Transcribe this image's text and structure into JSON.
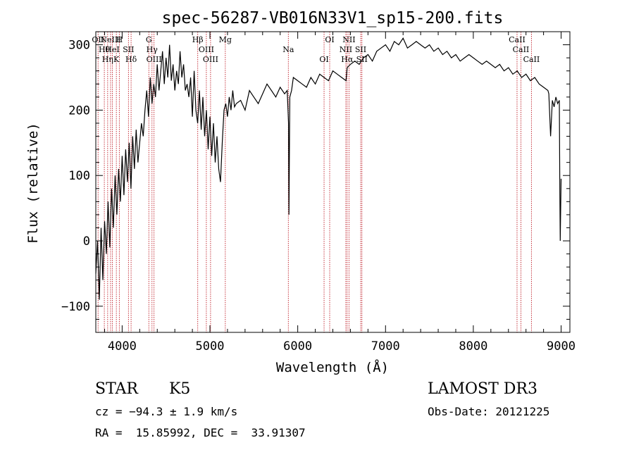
{
  "chart_data": {
    "type": "line",
    "title": "spec-56287-VB016N33V1_sp15-200.fits",
    "xlabel": "Wavelength (Å)",
    "ylabel": "Flux (relative)",
    "xlim": [
      3700,
      9100
    ],
    "ylim": [
      -140,
      320
    ],
    "x_ticks": [
      4000,
      5000,
      6000,
      7000,
      8000,
      9000
    ],
    "y_ticks": [
      -100,
      0,
      100,
      200,
      300
    ],
    "series": [
      {
        "name": "flux",
        "x": [
          3700,
          3720,
          3740,
          3760,
          3780,
          3800,
          3820,
          3840,
          3860,
          3880,
          3900,
          3920,
          3940,
          3960,
          3980,
          4000,
          4020,
          4040,
          4060,
          4080,
          4100,
          4120,
          4140,
          4160,
          4180,
          4200,
          4220,
          4240,
          4260,
          4280,
          4300,
          4320,
          4340,
          4360,
          4380,
          4400,
          4420,
          4440,
          4460,
          4480,
          4500,
          4520,
          4540,
          4560,
          4580,
          4600,
          4620,
          4640,
          4660,
          4680,
          4700,
          4720,
          4740,
          4760,
          4780,
          4800,
          4820,
          4840,
          4860,
          4880,
          4900,
          4920,
          4940,
          4960,
          4980,
          5000,
          5020,
          5040,
          5060,
          5080,
          5100,
          5120,
          5140,
          5160,
          5180,
          5200,
          5220,
          5240,
          5260,
          5280,
          5300,
          5350,
          5400,
          5450,
          5500,
          5550,
          5600,
          5650,
          5700,
          5750,
          5800,
          5850,
          5880,
          5895,
          5900,
          5910,
          5930,
          5950,
          6000,
          6050,
          6100,
          6150,
          6200,
          6250,
          6300,
          6350,
          6400,
          6450,
          6500,
          6550,
          6563,
          6600,
          6650,
          6700,
          6750,
          6800,
          6850,
          6900,
          6950,
          7000,
          7050,
          7100,
          7150,
          7200,
          7250,
          7300,
          7350,
          7400,
          7450,
          7500,
          7550,
          7600,
          7650,
          7700,
          7750,
          7800,
          7850,
          7900,
          7950,
          8000,
          8050,
          8100,
          8150,
          8200,
          8250,
          8300,
          8350,
          8400,
          8450,
          8500,
          8550,
          8600,
          8650,
          8700,
          8750,
          8800,
          8850,
          8860,
          8880,
          8900,
          8920,
          8940,
          8960,
          8980,
          8985,
          8990,
          9000
        ],
        "y": [
          -50,
          0,
          -90,
          20,
          -60,
          30,
          -20,
          60,
          -10,
          80,
          20,
          100,
          40,
          110,
          60,
          130,
          70,
          140,
          90,
          150,
          80,
          160,
          110,
          170,
          120,
          150,
          180,
          160,
          200,
          230,
          190,
          250,
          210,
          240,
          220,
          270,
          230,
          260,
          290,
          240,
          280,
          250,
          300,
          245,
          270,
          230,
          260,
          240,
          290,
          250,
          270,
          230,
          240,
          220,
          250,
          190,
          260,
          200,
          180,
          230,
          170,
          220,
          160,
          200,
          140,
          190,
          130,
          180,
          120,
          160,
          110,
          90,
          150,
          200,
          210,
          190,
          220,
          200,
          230,
          205,
          210,
          215,
          200,
          230,
          220,
          210,
          225,
          240,
          230,
          220,
          235,
          225,
          230,
          180,
          40,
          220,
          230,
          250,
          245,
          240,
          235,
          250,
          240,
          255,
          250,
          245,
          260,
          255,
          250,
          245,
          265,
          270,
          275,
          270,
          280,
          285,
          275,
          290,
          295,
          300,
          290,
          305,
          300,
          310,
          295,
          300,
          305,
          300,
          295,
          300,
          290,
          295,
          285,
          290,
          280,
          285,
          275,
          280,
          285,
          280,
          275,
          270,
          275,
          270,
          265,
          270,
          260,
          265,
          255,
          260,
          250,
          255,
          245,
          250,
          240,
          235,
          230,
          225,
          160,
          215,
          205,
          220,
          210,
          215,
          80,
          0,
          95
        ]
      }
    ],
    "lines": [
      {
        "x": 3726,
        "label": "OII"
      },
      {
        "x": 3797,
        "label": "Hθ"
      },
      {
        "x": 3835,
        "label": "Hη"
      },
      {
        "x": 3868,
        "label": "NeIII"
      },
      {
        "x": 3889,
        "label": "HeI"
      },
      {
        "x": 3934,
        "label": "K"
      },
      {
        "x": 3968,
        "label": "H"
      },
      {
        "x": 4072,
        "label": "SII"
      },
      {
        "x": 4102,
        "label": "Hδ"
      },
      {
        "x": 4304,
        "label": "G"
      },
      {
        "x": 4340,
        "label": "Hγ"
      },
      {
        "x": 4363,
        "label": "OIII"
      },
      {
        "x": 4861,
        "label": "Hβ"
      },
      {
        "x": 4959,
        "label": "OIII"
      },
      {
        "x": 5007,
        "label": "OIII"
      },
      {
        "x": 5175,
        "label": "Mg"
      },
      {
        "x": 5893,
        "label": "Na"
      },
      {
        "x": 6300,
        "label": "OI"
      },
      {
        "x": 6364,
        "label": "OI"
      },
      {
        "x": 6548,
        "label": "NII"
      },
      {
        "x": 6563,
        "label": "Hα"
      },
      {
        "x": 6584,
        "label": "NII"
      },
      {
        "x": 6717,
        "label": "SII"
      },
      {
        "x": 6731,
        "label": "SII"
      },
      {
        "x": 8498,
        "label": "CaII"
      },
      {
        "x": 8542,
        "label": "CaII"
      },
      {
        "x": 8662,
        "label": "CaII"
      }
    ],
    "colors": {
      "spectrum": "#000000",
      "lines": "#c0202a",
      "axes": "#000000"
    }
  },
  "info": {
    "object_class": "STAR",
    "subclass": "K5",
    "survey": "LAMOST DR3",
    "redshift": "cz = −94.3 ± 1.9 km/s",
    "obs_date": "Obs-Date: 20121225",
    "coords": "RA =  15.85992, DEC =  33.91307"
  }
}
